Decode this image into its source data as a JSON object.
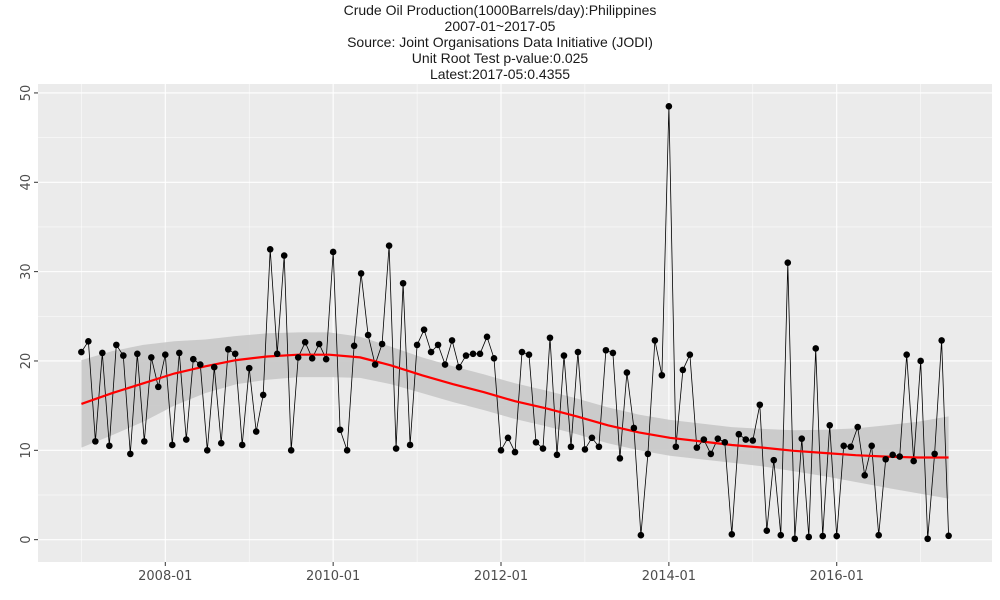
{
  "chart_data": {
    "type": "line",
    "title_lines": [
      "Crude Oil Production(1000Barrels/day):Philippines",
      "2007-01~2017-05",
      "Source: Joint Organisations Data Initiative (JODI)",
      "Unit Root Test p-value:0.025",
      "Latest:2017-05:0.4355"
    ],
    "xlabel": "",
    "ylabel": "",
    "x_start": "2007-01",
    "x_ticks": [
      "2008-01",
      "2010-01",
      "2012-01",
      "2014-01",
      "2016-01"
    ],
    "y_ticks": [
      0,
      10,
      20,
      30,
      40,
      50
    ],
    "ylim": [
      -2.5,
      51
    ],
    "grid": true,
    "series": [
      {
        "values": [
          21.0,
          22.2,
          11.0,
          20.9,
          10.5,
          21.8,
          20.6,
          9.6,
          20.8,
          11.0,
          20.4,
          17.1,
          20.7,
          10.6,
          20.9,
          11.2,
          20.2,
          19.6,
          10.0,
          19.3,
          10.8,
          21.3,
          20.8,
          10.6,
          19.2,
          12.1,
          16.2,
          32.5,
          20.8,
          31.8,
          10.0,
          20.4,
          22.1,
          20.3,
          21.9,
          20.2,
          32.2,
          12.3,
          10.0,
          21.7,
          29.8,
          22.9,
          19.6,
          21.9,
          32.9,
          10.2,
          28.7,
          10.6,
          21.8,
          23.5,
          21.0,
          21.8,
          19.6,
          22.3,
          19.3,
          20.6,
          20.8,
          20.8,
          22.7,
          20.3,
          10.0,
          11.4,
          9.8,
          21.0,
          20.7,
          10.9,
          10.2,
          22.6,
          9.5,
          20.6,
          10.4,
          21.0,
          10.1,
          11.4,
          10.4,
          21.2,
          20.9,
          9.1,
          18.7,
          12.5,
          0.5,
          9.6,
          22.3,
          18.4,
          48.5,
          10.4,
          19.0,
          20.7,
          10.3,
          11.2,
          9.6,
          11.3,
          10.9,
          0.6,
          11.8,
          11.2,
          11.1,
          15.1,
          1.0,
          8.9,
          0.5,
          31.0,
          0.1,
          11.3,
          0.3,
          21.4,
          0.4,
          12.8,
          0.4,
          10.5,
          10.4,
          12.6,
          7.2,
          10.5,
          0.5,
          9.0,
          9.5,
          9.3,
          20.7,
          8.8,
          20.0,
          0.1,
          9.6,
          22.3,
          0.4355
        ]
      }
    ],
    "trend": {
      "name": "loess",
      "values": [
        15.2,
        16.4,
        17.5,
        18.6,
        19.4,
        20.1,
        20.5,
        20.7,
        20.7,
        20.4,
        19.5,
        18.4,
        17.4,
        16.5,
        15.5,
        14.7,
        13.8,
        12.8,
        12.0,
        11.4,
        11.0,
        10.6,
        10.3,
        9.95,
        9.7,
        9.45,
        9.3,
        9.2,
        9.2
      ],
      "band": [
        4.9,
        4.7,
        4.3,
        3.6,
        3.0,
        2.7,
        2.6,
        2.5,
        2.5,
        2.3,
        2.1,
        2.0,
        2.0,
        2.0,
        2.0,
        2.0,
        2.0,
        2.0,
        2.0,
        2.0,
        2.0,
        2.0,
        2.1,
        2.3,
        2.6,
        3.0,
        3.5,
        4.0,
        4.6
      ],
      "color": "#ff0000"
    },
    "colors": {
      "panel": "#ebebeb",
      "grid": "#ffffff",
      "line": "#000000",
      "points": "#000000",
      "band": "#c8c8c8"
    }
  }
}
